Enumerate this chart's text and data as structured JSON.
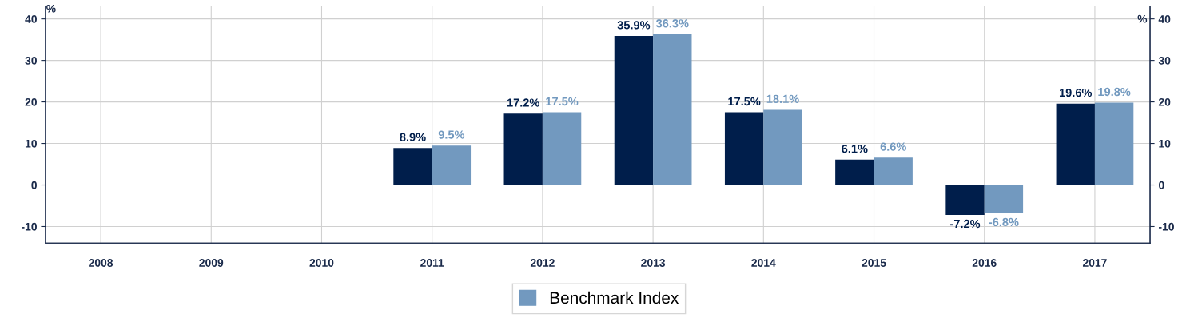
{
  "chart_data": {
    "type": "bar",
    "categories": [
      "2008",
      "2009",
      "2010",
      "2011",
      "2012",
      "2013",
      "2014",
      "2015",
      "2016",
      "2017"
    ],
    "series": [
      {
        "color": "#001e4b",
        "values": [
          null,
          null,
          null,
          8.9,
          17.2,
          35.9,
          17.5,
          6.1,
          -7.2,
          19.6
        ],
        "value_labels": [
          null,
          null,
          null,
          "8.9%",
          "17.2%",
          "35.9%",
          "17.5%",
          "6.1%",
          "-7.2%",
          "19.6%"
        ]
      },
      {
        "name": "Benchmark Index",
        "color": "#7299bf",
        "values": [
          null,
          null,
          null,
          9.5,
          17.5,
          36.3,
          18.1,
          6.6,
          -6.8,
          19.8
        ],
        "value_labels": [
          null,
          null,
          null,
          "9.5%",
          "17.5%",
          "36.3%",
          "18.1%",
          "6.6%",
          "-6.8%",
          "19.8%"
        ]
      }
    ],
    "ylabel": "%",
    "y2label": "%",
    "ylim": [
      -14,
      43
    ],
    "yticks": [
      -10,
      0,
      10,
      20,
      30,
      40
    ],
    "y2lim": [
      -14,
      43
    ],
    "y2ticks": [
      -10,
      0,
      10,
      20,
      30,
      40
    ],
    "grid": true,
    "legend": "bottom"
  }
}
